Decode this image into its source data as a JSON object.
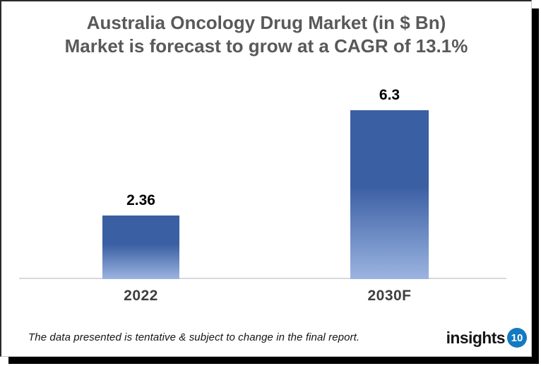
{
  "title": {
    "line1": "Australia Oncology Drug Market (in $ Bn)",
    "line2": "Market is forecast to grow at a CAGR of 13.1%",
    "color": "#595959"
  },
  "chart_data": {
    "type": "bar",
    "categories": [
      "2022",
      "2030F"
    ],
    "values": [
      2.36,
      6.3
    ],
    "value_labels": [
      "2.36",
      "6.3"
    ],
    "title": "Australia Oncology Drug Market (in $ Bn)",
    "subtitle": "Market is forecast to grow at a CAGR of 13.1%",
    "xlabel": "",
    "ylabel": "",
    "ylim": [
      0,
      6.6
    ],
    "grid": false,
    "legend": false,
    "bar_gradient_top": "#3a5fa3",
    "bar_gradient_bottom": "#9cb4e1",
    "axis_line_color": "#d9d9d9",
    "value_label_color": "#000000",
    "category_label_color": "#3f3f3f"
  },
  "footer": {
    "disclaimer": "The data presented is tentative & subject to change in the final report.",
    "logo_text": "insights",
    "logo_badge": "10",
    "logo_badge_color": "#1479c0"
  }
}
